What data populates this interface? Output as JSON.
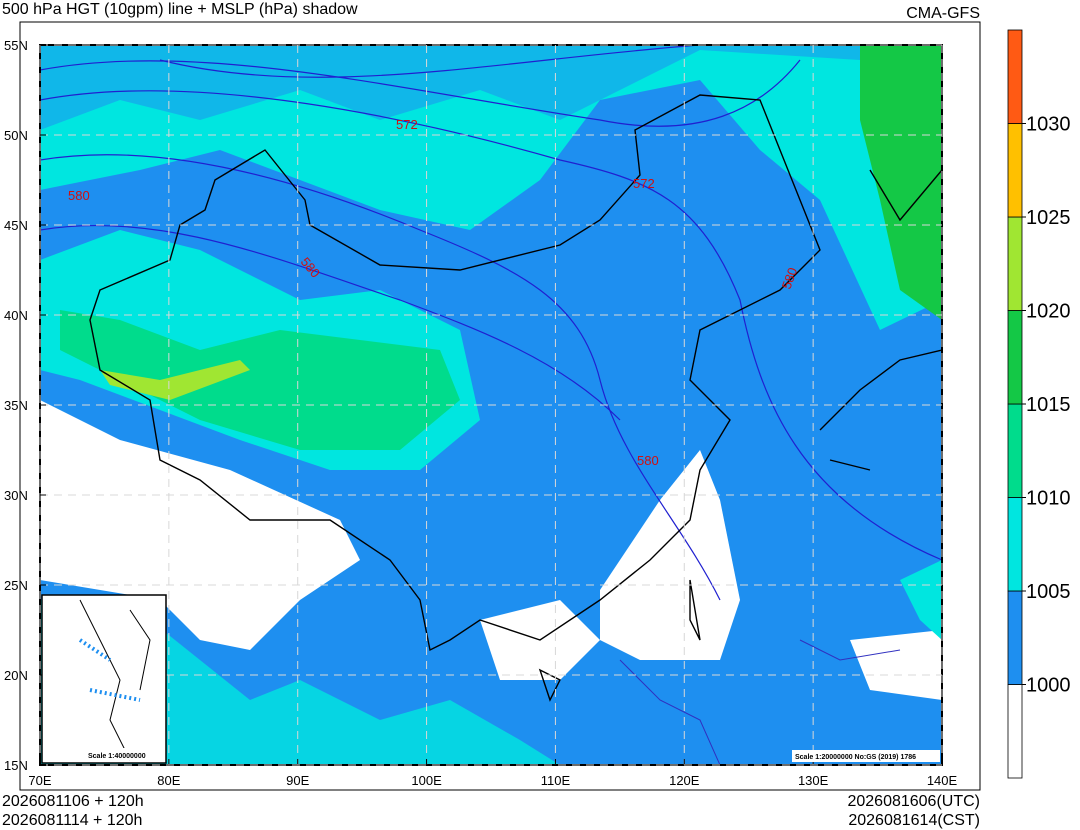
{
  "header": {
    "title": "500 hPa HGT (10gpm) line + MSLP (hPa) shadow",
    "model": "CMA-GFS"
  },
  "map": {
    "lonlim": [
      70,
      140
    ],
    "latlim": [
      15,
      55
    ],
    "lon_ticks": [
      {
        "value": 70,
        "label": "70E"
      },
      {
        "value": 80,
        "label": "80E"
      },
      {
        "value": 90,
        "label": "90E"
      },
      {
        "value": 100,
        "label": "100E"
      },
      {
        "value": 110,
        "label": "110E"
      },
      {
        "value": 120,
        "label": "120E"
      },
      {
        "value": 130,
        "label": "130E"
      },
      {
        "value": 140,
        "label": "140E"
      }
    ],
    "lat_ticks": [
      {
        "value": 55,
        "label": "55N"
      },
      {
        "value": 50,
        "label": "50N"
      },
      {
        "value": 45,
        "label": "45N"
      },
      {
        "value": 40,
        "label": "40N"
      },
      {
        "value": 35,
        "label": "35N"
      },
      {
        "value": 30,
        "label": "30N"
      },
      {
        "value": 25,
        "label": "25N"
      },
      {
        "value": 20,
        "label": "20N"
      },
      {
        "value": 15,
        "label": "15N"
      }
    ],
    "grid": true,
    "contour_labels": [
      "572",
      "572",
      "580",
      "580",
      "580",
      "580"
    ],
    "scale_note": "Scale 1:20000000 No:GS (2019) 1786",
    "inset_scale": "Scale 1:40000000"
  },
  "colorbar": {
    "ticks": [
      1000,
      1005,
      1010,
      1015,
      1020,
      1025,
      1030
    ],
    "colors": [
      "#ffffff",
      "#1e8ff0",
      "#00e6e0",
      "#00dc8c",
      "#14c846",
      "#a0e632",
      "#ffc000",
      "#ff5a14"
    ]
  },
  "footer": {
    "init_utc": "2026081106 + 120h",
    "init_cst": "2026081114 + 120h",
    "valid_utc": "2026081606(UTC)",
    "valid_cst": "2026081614(CST)"
  }
}
